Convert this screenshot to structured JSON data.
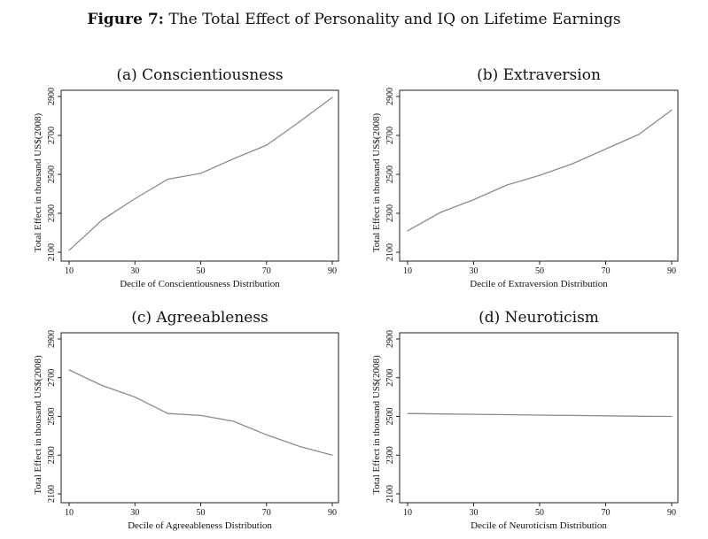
{
  "figure": {
    "label": "Figure 7:",
    "title": "The Total Effect of Personality and IQ on Lifetime Earnings"
  },
  "chart_data": [
    {
      "type": "line",
      "title": "(a) Conscientiousness",
      "xlabel": "Decile of Conscientiousness Distribution",
      "ylabel": "Total Effect in thousand US$(2008)",
      "xlim": [
        10,
        90
      ],
      "ylim": [
        2100,
        2900
      ],
      "xticks": [
        10,
        30,
        50,
        70,
        90
      ],
      "yticks": [
        2100,
        2300,
        2500,
        2700,
        2900
      ],
      "series": [
        {
          "x": [
            10,
            20,
            30,
            40,
            50,
            60,
            70,
            80,
            90
          ],
          "y": [
            2110,
            2265,
            2375,
            2475,
            2505,
            2580,
            2650,
            2770,
            2895
          ]
        }
      ],
      "color": "#8c8c8c"
    },
    {
      "type": "line",
      "title": "(b) Extraversion",
      "xlabel": "Decile of Extraversion Distribution",
      "ylabel": "Total Effect in thousand US$(2008)",
      "xlim": [
        10,
        90
      ],
      "ylim": [
        2100,
        2900
      ],
      "xticks": [
        10,
        30,
        50,
        70,
        90
      ],
      "yticks": [
        2100,
        2300,
        2500,
        2700,
        2900
      ],
      "series": [
        {
          "x": [
            10,
            20,
            30,
            40,
            50,
            60,
            70,
            80,
            90
          ],
          "y": [
            2210,
            2305,
            2370,
            2445,
            2495,
            2555,
            2630,
            2705,
            2830
          ]
        }
      ],
      "color": "#8c8c8c"
    },
    {
      "type": "line",
      "title": "(c) Agreeableness",
      "xlabel": "Decile of Agreeableness Distribution",
      "ylabel": "Total Effect in thousand US$(2008)",
      "xlim": [
        10,
        90
      ],
      "ylim": [
        2100,
        2900
      ],
      "xticks": [
        10,
        30,
        50,
        70,
        90
      ],
      "yticks": [
        2100,
        2300,
        2500,
        2700,
        2900
      ],
      "series": [
        {
          "x": [
            10,
            20,
            30,
            40,
            50,
            60,
            70,
            80,
            90
          ],
          "y": [
            2740,
            2660,
            2600,
            2515,
            2505,
            2475,
            2405,
            2345,
            2300
          ]
        }
      ],
      "color": "#8c8c8c"
    },
    {
      "type": "line",
      "title": "(d) Neuroticism",
      "xlabel": "Decile of Neuroticism Distribution",
      "ylabel": "Total Effect in thousand US$(2008)",
      "xlim": [
        10,
        90
      ],
      "ylim": [
        2100,
        2900
      ],
      "xticks": [
        10,
        30,
        50,
        70,
        90
      ],
      "yticks": [
        2100,
        2300,
        2500,
        2700,
        2900
      ],
      "series": [
        {
          "x": [
            10,
            20,
            30,
            40,
            50,
            60,
            70,
            80,
            90
          ],
          "y": [
            2515,
            2513,
            2511,
            2509,
            2507,
            2505,
            2503,
            2501,
            2500
          ]
        }
      ],
      "color": "#8c8c8c"
    }
  ]
}
